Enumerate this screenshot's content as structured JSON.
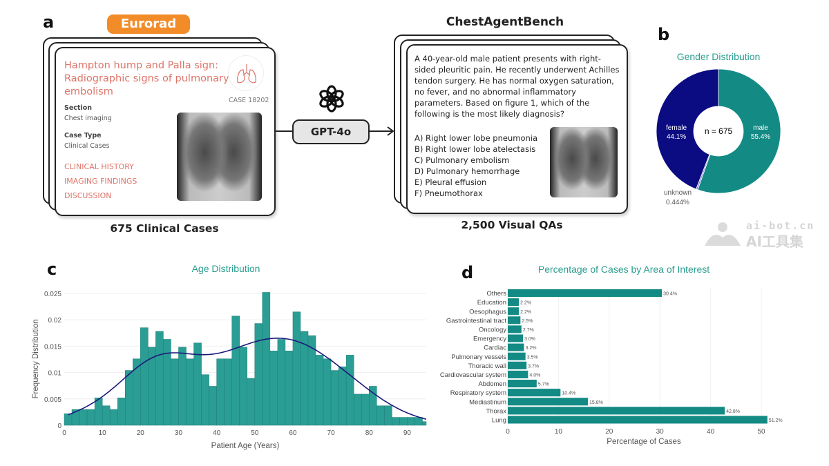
{
  "panel_a": {
    "letter": "a",
    "source_badge": "Eurorad",
    "case_title": "Hampton hump and Palla sign: Radiographic signs of pulmonary embolism",
    "case_number": "CASE 18202",
    "section_label": "Section",
    "section_value": "Chest imaging",
    "case_type_label": "Case Type",
    "case_type_value": "Clinical Cases",
    "links": [
      "CLINICAL HISTORY",
      "IMAGING FINDINGS",
      "DISCUSSION"
    ],
    "caption": "675 Clinical Cases",
    "model_label": "GPT-4o",
    "bench_title": "ChestAgentBench",
    "question": "A 40-year-old male patient presents with right-sided pleuritic pain. He recently underwent Achilles tendon surgery. He has normal oxygen saturation, no fever, and no abnormal inflammatory parameters. Based on figure 1, which of the following is the most likely diagnosis?",
    "options": [
      "A) Right lower lobe pneumonia",
      "B) Right lower lobe atelectasis",
      "C) Pulmonary embolism",
      "D) Pulmonary hemorrhage",
      "E) Pleural effusion",
      "F) Pneumothorax"
    ],
    "bench_caption": "2,500 Visual QAs"
  },
  "watermark": {
    "line1": "ai-bot.cn",
    "line2": "AI工具集"
  },
  "colors": {
    "teal": "#138a84",
    "navy": "#0b0b82",
    "unknown": "#8a8ae0",
    "title": "#2a9d8f",
    "kde": "#1a1a7a"
  },
  "chart_data": [
    {
      "panel": "b",
      "type": "pie",
      "title": "Gender Distribution",
      "center_label": "n = 675",
      "slices": [
        {
          "label": "male",
          "value": 55.4,
          "text": "55.4%"
        },
        {
          "label": "unknown",
          "value": 0.444,
          "text": "0.444%"
        },
        {
          "label": "female",
          "value": 44.1,
          "text": "44.1%"
        }
      ]
    },
    {
      "panel": "c",
      "type": "bar",
      "title": "Age Distribution",
      "xlabel": "Patient Age (Years)",
      "ylabel": "Frequency Distribution",
      "xlim": [
        0,
        95
      ],
      "ylim": [
        0,
        0.026
      ],
      "xticks": [
        "0",
        "10",
        "20",
        "30",
        "40",
        "50",
        "60",
        "70",
        "80",
        "90"
      ],
      "yticks": [
        "0",
        "0.005",
        "0.01",
        "0.015",
        "0.02",
        "0.025"
      ],
      "bin_width": 2,
      "bin_starts": [
        0,
        2,
        4,
        6,
        8,
        10,
        12,
        14,
        16,
        18,
        20,
        22,
        24,
        26,
        28,
        30,
        32,
        34,
        36,
        38,
        40,
        42,
        44,
        46,
        48,
        50,
        52,
        54,
        56,
        58,
        60,
        62,
        64,
        66,
        68,
        70,
        72,
        74,
        76,
        78,
        80,
        82,
        84,
        86,
        88,
        90,
        92,
        94
      ],
      "values": [
        0.0022,
        0.003,
        0.003,
        0.003,
        0.0052,
        0.0037,
        0.003,
        0.0052,
        0.0104,
        0.0126,
        0.0185,
        0.0148,
        0.0178,
        0.0163,
        0.0126,
        0.0148,
        0.0126,
        0.0156,
        0.0096,
        0.0074,
        0.0126,
        0.0126,
        0.0207,
        0.0148,
        0.0089,
        0.0193,
        0.0252,
        0.0141,
        0.0163,
        0.0141,
        0.0215,
        0.0178,
        0.017,
        0.0133,
        0.0126,
        0.0104,
        0.0111,
        0.0133,
        0.0059,
        0.0059,
        0.0074,
        0.0037,
        0.0037,
        0.0015,
        0.0015,
        0.0015,
        0.0015,
        0.0007
      ],
      "overlay": "kde line"
    },
    {
      "panel": "d",
      "type": "bar",
      "orientation": "horizontal",
      "title": "Percentage of Cases by Area of Interest",
      "xlabel": "Percentage of Cases",
      "xlim": [
        0,
        52
      ],
      "xticks": [
        "0",
        "10",
        "20",
        "30",
        "40",
        "50"
      ],
      "categories": [
        "Others",
        "Education",
        "Oesophagus",
        "Gastrointestinal tract",
        "Oncology",
        "Emergency",
        "Cardiac",
        "Pulmonary vessels",
        "Thoracic wall",
        "Cardiovascular system",
        "Abdomen",
        "Respiratory system",
        "Mediastinum",
        "Thorax",
        "Lung"
      ],
      "values": [
        30.4,
        2.2,
        2.2,
        2.5,
        2.7,
        3.0,
        3.2,
        3.5,
        3.7,
        4.0,
        5.7,
        10.4,
        15.8,
        42.8,
        51.2
      ],
      "labels": [
        "30.4%",
        "2.2%",
        "2.2%",
        "2.5%",
        "2.7%",
        "3.0%",
        "3.2%",
        "3.5%",
        "3.7%",
        "4.0%",
        "5.7%",
        "10.4%",
        "15.8%",
        "42.8%",
        "51.2%"
      ]
    }
  ]
}
